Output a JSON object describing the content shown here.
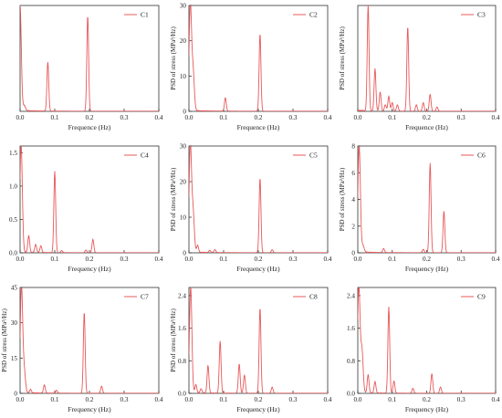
{
  "chart_data": [
    {
      "type": "line",
      "legend": "C1",
      "xlabel": "Frequence (Hz)",
      "ylabel": "",
      "xlim": [
        0,
        0.4
      ],
      "ylim": [
        0,
        20.5
      ],
      "xticks": [
        "0.0",
        "0.1",
        "0.2",
        "0.3",
        "0.4"
      ],
      "yticks": [],
      "ytick_values": [],
      "color": "#e8585a",
      "legend_position": "top-right",
      "peaks": [
        {
          "x": 0.0,
          "y": 20.5
        },
        {
          "x": 0.012,
          "y": 1.0
        },
        {
          "x": 0.08,
          "y": 9.5
        },
        {
          "x": 0.195,
          "y": 18.5
        }
      ]
    },
    {
      "type": "line",
      "legend": "C2",
      "xlabel": "Frequence (Hz)",
      "ylabel": "PSD of stress (MPa²/Hz)",
      "xlim": [
        0,
        0.4
      ],
      "ylim": [
        0,
        30
      ],
      "xticks": [
        "0.0",
        "0.1",
        "0.2",
        "0.3",
        "0.4"
      ],
      "yticks": [
        "0",
        "10",
        "20",
        "30"
      ],
      "ytick_values": [
        0,
        10,
        20,
        30
      ],
      "color": "#e8585a",
      "legend_position": "top-right",
      "peaks": [
        {
          "x": 0.004,
          "y": 30
        },
        {
          "x": 0.012,
          "y": 11
        },
        {
          "x": 0.105,
          "y": 3.8
        },
        {
          "x": 0.205,
          "y": 22
        }
      ]
    },
    {
      "type": "line",
      "legend": "C3",
      "xlabel": "Frequence (Hz)",
      "ylabel": "PSD of stress (MPa²/Hz)",
      "xlim": [
        0,
        0.4
      ],
      "ylim": [
        0,
        0.5
      ],
      "xticks": [
        "0.0",
        "0.1",
        "0.2",
        "0.3",
        "0.4"
      ],
      "yticks": [],
      "ytick_values": [],
      "color": "#e8585a",
      "legend_position": "top-right",
      "peaks": [
        {
          "x": 0.03,
          "y": 0.5
        },
        {
          "x": 0.05,
          "y": 0.2
        },
        {
          "x": 0.065,
          "y": 0.09
        },
        {
          "x": 0.08,
          "y": 0.03
        },
        {
          "x": 0.09,
          "y": 0.07
        },
        {
          "x": 0.1,
          "y": 0.04
        },
        {
          "x": 0.115,
          "y": 0.03
        },
        {
          "x": 0.145,
          "y": 0.4
        },
        {
          "x": 0.17,
          "y": 0.03
        },
        {
          "x": 0.19,
          "y": 0.04
        },
        {
          "x": 0.21,
          "y": 0.08
        },
        {
          "x": 0.23,
          "y": 0.02
        }
      ]
    },
    {
      "type": "line",
      "legend": "C4",
      "xlabel": "Frequency (Hz)",
      "ylabel": "",
      "xlim": [
        0,
        0.4
      ],
      "ylim": [
        0,
        1.6
      ],
      "xticks": [
        "0.0",
        "0.1",
        "0.2",
        "0.3",
        "0.4"
      ],
      "yticks": [
        "0.0",
        "0.5",
        "1.0",
        "1.5"
      ],
      "ytick_values": [
        0,
        0.5,
        1.0,
        1.5
      ],
      "color": "#e8585a",
      "legend_position": "top-right",
      "peaks": [
        {
          "x": 0.003,
          "y": 1.6
        },
        {
          "x": 0.025,
          "y": 0.25
        },
        {
          "x": 0.045,
          "y": 0.12
        },
        {
          "x": 0.06,
          "y": 0.1
        },
        {
          "x": 0.1,
          "y": 1.22
        },
        {
          "x": 0.12,
          "y": 0.03
        },
        {
          "x": 0.19,
          "y": 0.04
        },
        {
          "x": 0.21,
          "y": 0.2
        }
      ]
    },
    {
      "type": "line",
      "legend": "C5",
      "xlabel": "Frequency (Hz)",
      "ylabel": "PSD of stress (MPa²/Hz)",
      "xlim": [
        0,
        0.4
      ],
      "ylim": [
        0,
        30
      ],
      "xticks": [
        "0.0",
        "0.1",
        "0.2",
        "0.3",
        "0.4"
      ],
      "yticks": [
        "0",
        "10",
        "20",
        "30"
      ],
      "ytick_values": [
        0,
        10,
        20,
        30
      ],
      "color": "#e8585a",
      "legend_position": "top-right",
      "peaks": [
        {
          "x": 0.004,
          "y": 30
        },
        {
          "x": 0.012,
          "y": 11
        },
        {
          "x": 0.025,
          "y": 2
        },
        {
          "x": 0.06,
          "y": 0.6
        },
        {
          "x": 0.075,
          "y": 0.8
        },
        {
          "x": 0.205,
          "y": 21
        },
        {
          "x": 0.24,
          "y": 0.8
        }
      ]
    },
    {
      "type": "line",
      "legend": "C6",
      "xlabel": "Frequency (Hz)",
      "ylabel": "PSD of stress (MPa²/Hz)",
      "xlim": [
        0,
        0.4
      ],
      "ylim": [
        0,
        8
      ],
      "xticks": [
        "0.0",
        "0.1",
        "0.2",
        "0.3",
        "0.4"
      ],
      "yticks": [
        "0",
        "2",
        "4",
        "6",
        "8"
      ],
      "ytick_values": [
        0,
        2,
        4,
        6,
        8
      ],
      "color": "#e8585a",
      "legend_position": "top-right",
      "peaks": [
        {
          "x": 0.004,
          "y": 8
        },
        {
          "x": 0.015,
          "y": 0.5
        },
        {
          "x": 0.075,
          "y": 0.3
        },
        {
          "x": 0.19,
          "y": 0.25
        },
        {
          "x": 0.21,
          "y": 6.7
        },
        {
          "x": 0.25,
          "y": 3.1
        }
      ]
    },
    {
      "type": "line",
      "legend": "C7",
      "xlabel": "Frequency (Hz)",
      "ylabel": "PSD of stress (MPa²/Hz)",
      "xlim": [
        0,
        0.4
      ],
      "ylim": [
        0,
        45
      ],
      "xticks": [
        "0.0",
        "0.1",
        "0.2",
        "0.3",
        "0.4"
      ],
      "yticks": [
        "0",
        "15",
        "30",
        "45"
      ],
      "ytick_values": [
        0,
        15,
        30,
        45
      ],
      "color": "#e8585a",
      "legend_position": "top-right",
      "peaks": [
        {
          "x": 0.004,
          "y": 45
        },
        {
          "x": 0.012,
          "y": 9
        },
        {
          "x": 0.03,
          "y": 1.5
        },
        {
          "x": 0.07,
          "y": 3.5
        },
        {
          "x": 0.105,
          "y": 1.2
        },
        {
          "x": 0.185,
          "y": 34.5
        },
        {
          "x": 0.235,
          "y": 3
        }
      ]
    },
    {
      "type": "line",
      "legend": "C8",
      "xlabel": "Frequency (Hz)",
      "ylabel": "PSD of stress (MPa²/Hz)",
      "xlim": [
        0,
        0.4
      ],
      "ylim": [
        0,
        2.6
      ],
      "xticks": [
        "0.0",
        "0.1",
        "0.2",
        "0.3",
        "0.4"
      ],
      "yticks": [
        "0.0",
        "0.8",
        "1.6",
        "2.4"
      ],
      "ytick_values": [
        0,
        0.8,
        1.6,
        2.4
      ],
      "color": "#e8585a",
      "legend_position": "top-right",
      "peaks": [
        {
          "x": 0.005,
          "y": 2.6
        },
        {
          "x": 0.02,
          "y": 0.2
        },
        {
          "x": 0.035,
          "y": 0.1
        },
        {
          "x": 0.055,
          "y": 0.68
        },
        {
          "x": 0.09,
          "y": 1.28
        },
        {
          "x": 0.145,
          "y": 0.72
        },
        {
          "x": 0.16,
          "y": 0.45
        },
        {
          "x": 0.205,
          "y": 2.1
        },
        {
          "x": 0.24,
          "y": 0.15
        }
      ]
    },
    {
      "type": "line",
      "legend": "C9",
      "xlabel": "Frequency (Hz)",
      "ylabel": "",
      "xlim": [
        0,
        0.4
      ],
      "ylim": [
        0,
        2.6
      ],
      "xticks": [
        "0.0",
        "0.1",
        "0.2",
        "0.3",
        "0.4"
      ],
      "yticks": [
        "0.0",
        "0.8",
        "1.6",
        "2.4"
      ],
      "ytick_values": [
        0,
        0.8,
        1.6,
        2.4
      ],
      "color": "#e8585a",
      "legend_position": "top-right",
      "peaks": [
        {
          "x": 0.003,
          "y": 2.6
        },
        {
          "x": 0.012,
          "y": 1.05
        },
        {
          "x": 0.03,
          "y": 0.45
        },
        {
          "x": 0.05,
          "y": 0.28
        },
        {
          "x": 0.09,
          "y": 2.12
        },
        {
          "x": 0.105,
          "y": 0.3
        },
        {
          "x": 0.16,
          "y": 0.12
        },
        {
          "x": 0.215,
          "y": 0.48
        },
        {
          "x": 0.24,
          "y": 0.15
        }
      ]
    }
  ]
}
